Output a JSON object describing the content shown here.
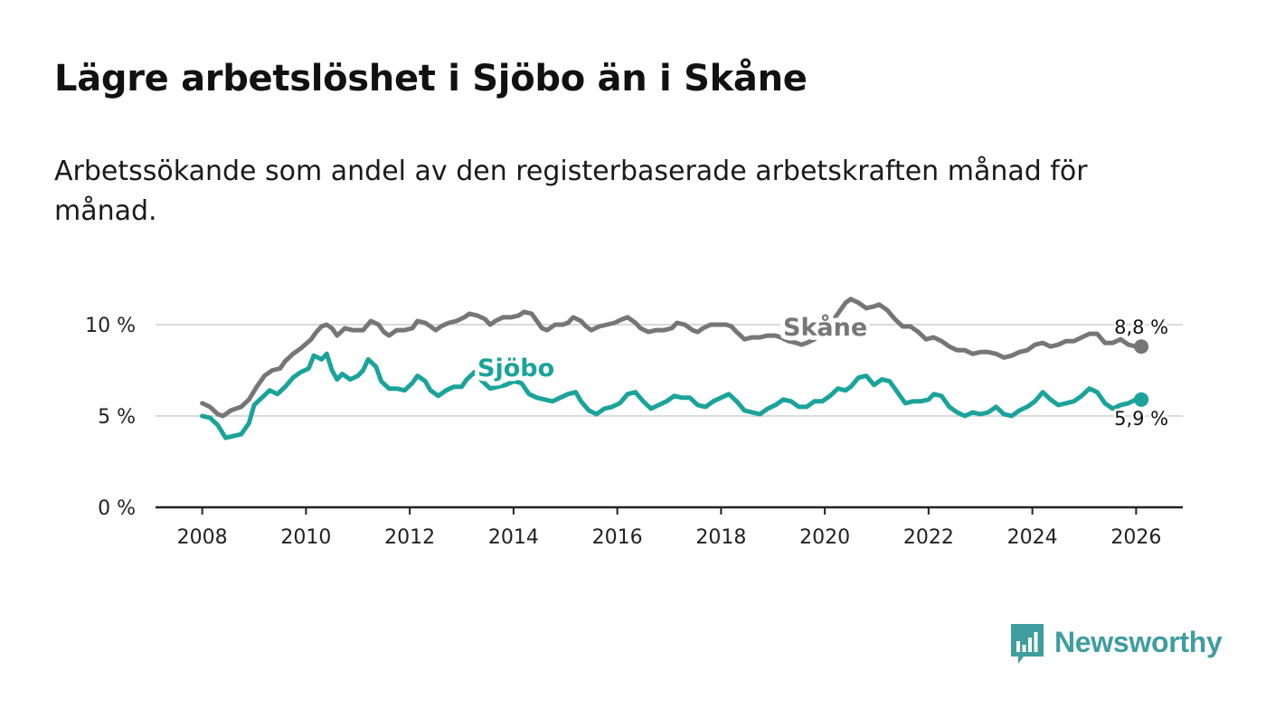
{
  "title": "Lägre arbetslöshet i Sjöbo än i Skåne",
  "subtitle": "Arbetssökande som andel av den registerbaserade arbetskraften månad för månad.",
  "logo": {
    "text": "Newsworthy",
    "icon": "bar-chart-speech-bubble-icon"
  },
  "colors": {
    "skane": "#767676",
    "sjobo": "#1aa39a",
    "grid": "#d9d9d9",
    "axis": "#222222",
    "brand": "#3f9d9e"
  },
  "chart_data": {
    "type": "line",
    "title": "Lägre arbetslöshet i Sjöbo än i Skåne",
    "xlabel": "",
    "ylabel": "",
    "xlim": [
      2007.1,
      2026.9
    ],
    "ylim": [
      0,
      10
    ],
    "x_ticks": [
      2008,
      2010,
      2012,
      2014,
      2016,
      2018,
      2020,
      2022,
      2024,
      2026
    ],
    "x_tick_labels": [
      "2008",
      "2010",
      "2012",
      "2014",
      "2016",
      "2018",
      "2020",
      "2022",
      "2024",
      "2026"
    ],
    "y_ticks": [
      0,
      5,
      10
    ],
    "y_tick_labels": [
      "0 %",
      "5 %",
      "10 %"
    ],
    "grid": true,
    "series": [
      {
        "name": "Skåne",
        "color": "#767676",
        "label": "Skåne",
        "end_label": "8,8 %",
        "points": [
          [
            2008.0,
            5.7
          ],
          [
            2008.15,
            5.5
          ],
          [
            2008.3,
            5.1
          ],
          [
            2008.4,
            5.0
          ],
          [
            2008.55,
            5.3
          ],
          [
            2008.75,
            5.5
          ],
          [
            2008.9,
            5.9
          ],
          [
            2009.05,
            6.6
          ],
          [
            2009.2,
            7.2
          ],
          [
            2009.35,
            7.5
          ],
          [
            2009.5,
            7.6
          ],
          [
            2009.6,
            8.0
          ],
          [
            2009.75,
            8.4
          ],
          [
            2009.9,
            8.7
          ],
          [
            2010.1,
            9.2
          ],
          [
            2010.2,
            9.6
          ],
          [
            2010.3,
            9.9
          ],
          [
            2010.4,
            10.0
          ],
          [
            2010.5,
            9.8
          ],
          [
            2010.6,
            9.4
          ],
          [
            2010.75,
            9.8
          ],
          [
            2010.9,
            9.7
          ],
          [
            2011.1,
            9.7
          ],
          [
            2011.25,
            10.2
          ],
          [
            2011.4,
            10.0
          ],
          [
            2011.5,
            9.6
          ],
          [
            2011.6,
            9.4
          ],
          [
            2011.75,
            9.7
          ],
          [
            2011.9,
            9.7
          ],
          [
            2012.05,
            9.8
          ],
          [
            2012.15,
            10.2
          ],
          [
            2012.3,
            10.1
          ],
          [
            2012.4,
            9.9
          ],
          [
            2012.5,
            9.7
          ],
          [
            2012.6,
            9.9
          ],
          [
            2012.75,
            10.1
          ],
          [
            2012.9,
            10.2
          ],
          [
            2013.05,
            10.4
          ],
          [
            2013.15,
            10.6
          ],
          [
            2013.3,
            10.5
          ],
          [
            2013.45,
            10.3
          ],
          [
            2013.55,
            10.0
          ],
          [
            2013.65,
            10.2
          ],
          [
            2013.8,
            10.4
          ],
          [
            2013.95,
            10.4
          ],
          [
            2014.1,
            10.5
          ],
          [
            2014.2,
            10.7
          ],
          [
            2014.35,
            10.6
          ],
          [
            2014.45,
            10.2
          ],
          [
            2014.55,
            9.8
          ],
          [
            2014.65,
            9.7
          ],
          [
            2014.8,
            10.0
          ],
          [
            2014.95,
            10.0
          ],
          [
            2015.05,
            10.1
          ],
          [
            2015.15,
            10.4
          ],
          [
            2015.3,
            10.2
          ],
          [
            2015.4,
            9.9
          ],
          [
            2015.5,
            9.7
          ],
          [
            2015.65,
            9.9
          ],
          [
            2015.8,
            10.0
          ],
          [
            2015.95,
            10.1
          ],
          [
            2016.1,
            10.3
          ],
          [
            2016.2,
            10.4
          ],
          [
            2016.35,
            10.1
          ],
          [
            2016.45,
            9.8
          ],
          [
            2016.6,
            9.6
          ],
          [
            2016.75,
            9.7
          ],
          [
            2016.9,
            9.7
          ],
          [
            2017.05,
            9.8
          ],
          [
            2017.15,
            10.1
          ],
          [
            2017.3,
            10.0
          ],
          [
            2017.45,
            9.7
          ],
          [
            2017.55,
            9.6
          ],
          [
            2017.65,
            9.8
          ],
          [
            2017.8,
            10.0
          ],
          [
            2017.95,
            10.0
          ],
          [
            2018.1,
            10.0
          ],
          [
            2018.2,
            9.9
          ],
          [
            2018.3,
            9.6
          ],
          [
            2018.45,
            9.2
          ],
          [
            2018.6,
            9.3
          ],
          [
            2018.75,
            9.3
          ],
          [
            2018.9,
            9.4
          ],
          [
            2019.05,
            9.4
          ],
          [
            2019.15,
            9.3
          ],
          [
            2019.3,
            9.1
          ],
          [
            2019.45,
            9.0
          ],
          [
            2019.55,
            8.9
          ],
          [
            2019.65,
            9.0
          ],
          [
            2019.8,
            9.2
          ],
          [
            2019.95,
            9.6
          ],
          [
            2020.1,
            10.0
          ],
          [
            2020.25,
            10.6
          ],
          [
            2020.4,
            11.2
          ],
          [
            2020.5,
            11.4
          ],
          [
            2020.65,
            11.2
          ],
          [
            2020.8,
            10.9
          ],
          [
            2020.95,
            11.0
          ],
          [
            2021.05,
            11.1
          ],
          [
            2021.2,
            10.8
          ],
          [
            2021.35,
            10.3
          ],
          [
            2021.5,
            9.9
          ],
          [
            2021.65,
            9.9
          ],
          [
            2021.8,
            9.6
          ],
          [
            2021.95,
            9.2
          ],
          [
            2022.1,
            9.3
          ],
          [
            2022.25,
            9.1
          ],
          [
            2022.4,
            8.8
          ],
          [
            2022.55,
            8.6
          ],
          [
            2022.7,
            8.6
          ],
          [
            2022.85,
            8.4
          ],
          [
            2023.0,
            8.5
          ],
          [
            2023.15,
            8.5
          ],
          [
            2023.3,
            8.4
          ],
          [
            2023.45,
            8.2
          ],
          [
            2023.6,
            8.3
          ],
          [
            2023.75,
            8.5
          ],
          [
            2023.9,
            8.6
          ],
          [
            2024.05,
            8.9
          ],
          [
            2024.2,
            9.0
          ],
          [
            2024.35,
            8.8
          ],
          [
            2024.5,
            8.9
          ],
          [
            2024.65,
            9.1
          ],
          [
            2024.8,
            9.1
          ],
          [
            2024.95,
            9.3
          ],
          [
            2025.1,
            9.5
          ],
          [
            2025.25,
            9.5
          ],
          [
            2025.4,
            9.0
          ],
          [
            2025.55,
            9.0
          ],
          [
            2025.7,
            9.2
          ],
          [
            2025.85,
            8.9
          ],
          [
            2026.0,
            8.8
          ],
          [
            2026.1,
            8.8
          ]
        ]
      },
      {
        "name": "Sjöbo",
        "color": "#1aa39a",
        "label": "Sjöbo",
        "end_label": "5,9 %",
        "points": [
          [
            2008.0,
            5.0
          ],
          [
            2008.15,
            4.9
          ],
          [
            2008.3,
            4.5
          ],
          [
            2008.45,
            3.8
          ],
          [
            2008.6,
            3.9
          ],
          [
            2008.75,
            4.0
          ],
          [
            2008.9,
            4.6
          ],
          [
            2009.0,
            5.6
          ],
          [
            2009.15,
            6.0
          ],
          [
            2009.3,
            6.4
          ],
          [
            2009.45,
            6.2
          ],
          [
            2009.6,
            6.6
          ],
          [
            2009.75,
            7.1
          ],
          [
            2009.9,
            7.4
          ],
          [
            2010.05,
            7.6
          ],
          [
            2010.15,
            8.3
          ],
          [
            2010.3,
            8.1
          ],
          [
            2010.4,
            8.4
          ],
          [
            2010.5,
            7.5
          ],
          [
            2010.6,
            7.0
          ],
          [
            2010.7,
            7.3
          ],
          [
            2010.85,
            7.0
          ],
          [
            2011.0,
            7.2
          ],
          [
            2011.1,
            7.5
          ],
          [
            2011.2,
            8.1
          ],
          [
            2011.35,
            7.7
          ],
          [
            2011.45,
            6.9
          ],
          [
            2011.6,
            6.5
          ],
          [
            2011.75,
            6.5
          ],
          [
            2011.9,
            6.4
          ],
          [
            2012.05,
            6.8
          ],
          [
            2012.15,
            7.2
          ],
          [
            2012.3,
            6.9
          ],
          [
            2012.4,
            6.4
          ],
          [
            2012.55,
            6.1
          ],
          [
            2012.7,
            6.4
          ],
          [
            2012.85,
            6.6
          ],
          [
            2013.0,
            6.6
          ],
          [
            2013.1,
            7.0
          ],
          [
            2013.25,
            7.4
          ],
          [
            2013.4,
            6.9
          ],
          [
            2013.55,
            6.5
          ],
          [
            2013.7,
            6.6
          ],
          [
            2013.85,
            6.7
          ],
          [
            2014.0,
            6.9
          ],
          [
            2014.15,
            6.8
          ],
          [
            2014.3,
            6.2
          ],
          [
            2014.45,
            6.0
          ],
          [
            2014.6,
            5.9
          ],
          [
            2014.75,
            5.8
          ],
          [
            2014.9,
            6.0
          ],
          [
            2015.05,
            6.2
          ],
          [
            2015.2,
            6.3
          ],
          [
            2015.3,
            5.8
          ],
          [
            2015.45,
            5.3
          ],
          [
            2015.6,
            5.1
          ],
          [
            2015.75,
            5.4
          ],
          [
            2015.9,
            5.5
          ],
          [
            2016.05,
            5.7
          ],
          [
            2016.2,
            6.2
          ],
          [
            2016.35,
            6.3
          ],
          [
            2016.5,
            5.8
          ],
          [
            2016.65,
            5.4
          ],
          [
            2016.8,
            5.6
          ],
          [
            2016.95,
            5.8
          ],
          [
            2017.1,
            6.1
          ],
          [
            2017.25,
            6.0
          ],
          [
            2017.4,
            6.0
          ],
          [
            2017.55,
            5.6
          ],
          [
            2017.7,
            5.5
          ],
          [
            2017.85,
            5.8
          ],
          [
            2018.0,
            6.0
          ],
          [
            2018.15,
            6.2
          ],
          [
            2018.3,
            5.8
          ],
          [
            2018.45,
            5.3
          ],
          [
            2018.6,
            5.2
          ],
          [
            2018.75,
            5.1
          ],
          [
            2018.9,
            5.4
          ],
          [
            2019.05,
            5.6
          ],
          [
            2019.2,
            5.9
          ],
          [
            2019.35,
            5.8
          ],
          [
            2019.5,
            5.5
          ],
          [
            2019.65,
            5.5
          ],
          [
            2019.8,
            5.8
          ],
          [
            2019.95,
            5.8
          ],
          [
            2020.1,
            6.1
          ],
          [
            2020.25,
            6.5
          ],
          [
            2020.4,
            6.4
          ],
          [
            2020.5,
            6.6
          ],
          [
            2020.65,
            7.1
          ],
          [
            2020.8,
            7.2
          ],
          [
            2020.95,
            6.7
          ],
          [
            2021.1,
            7.0
          ],
          [
            2021.25,
            6.9
          ],
          [
            2021.4,
            6.3
          ],
          [
            2021.55,
            5.7
          ],
          [
            2021.7,
            5.8
          ],
          [
            2021.85,
            5.8
          ],
          [
            2022.0,
            5.9
          ],
          [
            2022.1,
            6.2
          ],
          [
            2022.25,
            6.1
          ],
          [
            2022.4,
            5.5
          ],
          [
            2022.55,
            5.2
          ],
          [
            2022.7,
            5.0
          ],
          [
            2022.85,
            5.2
          ],
          [
            2023.0,
            5.1
          ],
          [
            2023.15,
            5.2
          ],
          [
            2023.3,
            5.5
          ],
          [
            2023.45,
            5.1
          ],
          [
            2023.6,
            5.0
          ],
          [
            2023.75,
            5.3
          ],
          [
            2023.9,
            5.5
          ],
          [
            2024.05,
            5.8
          ],
          [
            2024.2,
            6.3
          ],
          [
            2024.35,
            5.9
          ],
          [
            2024.5,
            5.6
          ],
          [
            2024.65,
            5.7
          ],
          [
            2024.8,
            5.8
          ],
          [
            2024.95,
            6.1
          ],
          [
            2025.1,
            6.5
          ],
          [
            2025.25,
            6.3
          ],
          [
            2025.4,
            5.7
          ],
          [
            2025.55,
            5.4
          ],
          [
            2025.7,
            5.6
          ],
          [
            2025.85,
            5.7
          ],
          [
            2026.0,
            5.9
          ],
          [
            2026.1,
            5.9
          ]
        ]
      }
    ]
  }
}
